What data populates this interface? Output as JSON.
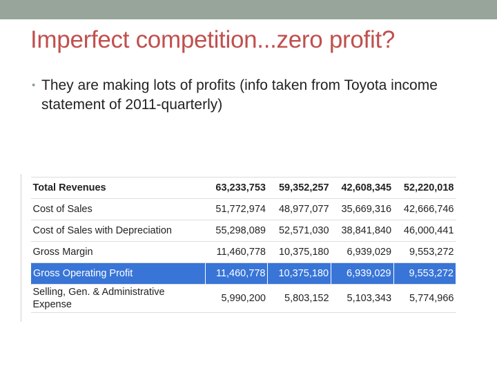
{
  "slide": {
    "title": "Imperfect competition...zero profit?",
    "bullet": "They are making lots of profits (info taken from Toyota income statement of 2011-quarterly)"
  },
  "table": {
    "rows": [
      {
        "label": "Total Revenues",
        "values": [
          "63,233,753",
          "59,352,257",
          "42,608,345",
          "52,220,018"
        ]
      },
      {
        "label": "Cost of Sales",
        "values": [
          "51,772,974",
          "48,977,077",
          "35,669,316",
          "42,666,746"
        ]
      },
      {
        "label": "Cost of Sales with Depreciation",
        "values": [
          "55,298,089",
          "52,571,030",
          "38,841,840",
          "46,000,441"
        ]
      },
      {
        "label": "Gross Margin",
        "values": [
          "11,460,778",
          "10,375,180",
          "6,939,029",
          "9,553,272"
        ]
      },
      {
        "label": "Gross Operating Profit",
        "values": [
          "11,460,778",
          "10,375,180",
          "6,939,029",
          "9,553,272"
        ]
      },
      {
        "label": "Selling, Gen. & Administrative Expense",
        "values": [
          "5,990,200",
          "5,803,152",
          "5,103,343",
          "5,774,966"
        ]
      }
    ]
  },
  "colors": {
    "title": "#c0504d",
    "top_bar": "#97a59b",
    "highlight": "#3875d7"
  }
}
